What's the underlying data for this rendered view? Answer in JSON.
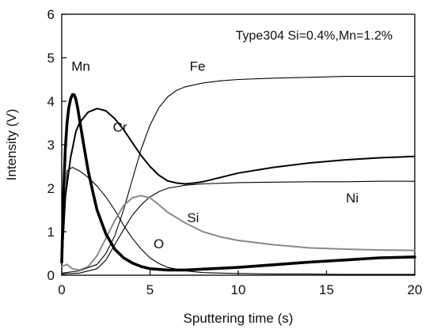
{
  "chart_data": {
    "type": "line",
    "title": "",
    "annotation": "Type304 Si=0.4%,Mn=1.2%",
    "xlabel": "Sputtering time (s)",
    "ylabel": "Intensity (V)",
    "xlim": [
      0,
      20
    ],
    "ylim": [
      0,
      6
    ],
    "xticks": [
      "0",
      "5",
      "10",
      "15",
      "20"
    ],
    "yticks": [
      "0",
      "1",
      "2",
      "3",
      "4",
      "5",
      "6"
    ],
    "grid": false,
    "series": [
      {
        "name": "Mn",
        "color": "#000000",
        "weight": "bold",
        "x": [
          0,
          0.1,
          0.2,
          0.3,
          0.4,
          0.5,
          0.6,
          0.7,
          0.8,
          0.9,
          1.0,
          1.2,
          1.5,
          1.8,
          2.0,
          2.5,
          3.0,
          3.5,
          4.0,
          4.5,
          5.0,
          6.0,
          7.0,
          8.0,
          10.0,
          12.0,
          14.0,
          16.0,
          18.0,
          20.0
        ],
        "y": [
          0.3,
          1.8,
          2.9,
          3.5,
          3.85,
          4.05,
          4.15,
          4.15,
          4.05,
          3.85,
          3.6,
          3.1,
          2.4,
          1.85,
          1.5,
          0.95,
          0.6,
          0.4,
          0.28,
          0.2,
          0.15,
          0.12,
          0.12,
          0.14,
          0.18,
          0.24,
          0.3,
          0.35,
          0.4,
          0.42
        ]
      },
      {
        "name": "Cr",
        "color": "#000000",
        "weight": "medium",
        "x": [
          0,
          0.2,
          0.5,
          0.8,
          1.0,
          1.5,
          2.0,
          2.5,
          3.0,
          3.5,
          4.0,
          4.5,
          5.0,
          5.5,
          6.0,
          6.5,
          7.0,
          7.5,
          8.0,
          9.0,
          10.0,
          12.0,
          14.0,
          16.0,
          18.0,
          20.0
        ],
        "y": [
          0.4,
          1.8,
          2.7,
          3.3,
          3.5,
          3.75,
          3.83,
          3.78,
          3.6,
          3.35,
          3.05,
          2.75,
          2.5,
          2.3,
          2.17,
          2.12,
          2.1,
          2.12,
          2.15,
          2.25,
          2.35,
          2.48,
          2.58,
          2.65,
          2.7,
          2.73
        ]
      },
      {
        "name": "Fe",
        "color": "#000000",
        "weight": "thin",
        "x": [
          0,
          1.0,
          2.0,
          2.5,
          3.0,
          3.5,
          4.0,
          4.5,
          5.0,
          5.5,
          6.0,
          6.5,
          7.0,
          8.0,
          9.0,
          10.0,
          12.0,
          14.0,
          16.0,
          18.0,
          20.0
        ],
        "y": [
          0.05,
          0.1,
          0.25,
          0.5,
          0.9,
          1.5,
          2.2,
          2.9,
          3.45,
          3.85,
          4.1,
          4.25,
          4.33,
          4.42,
          4.47,
          4.5,
          4.53,
          4.55,
          4.57,
          4.57,
          4.57
        ]
      },
      {
        "name": "Ni",
        "color": "#000000",
        "weight": "thin",
        "x": [
          0,
          1.0,
          2.0,
          2.5,
          3.0,
          3.5,
          4.0,
          4.5,
          5.0,
          5.5,
          6.0,
          7.0,
          8.0,
          10.0,
          12.0,
          14.0,
          16.0,
          18.0,
          20.0
        ],
        "y": [
          0.03,
          0.05,
          0.15,
          0.35,
          0.7,
          1.05,
          1.38,
          1.62,
          1.8,
          1.92,
          2.0,
          2.07,
          2.1,
          2.13,
          2.14,
          2.15,
          2.15,
          2.16,
          2.16
        ]
      },
      {
        "name": "Si",
        "color": "#8a8a8a",
        "weight": "medium",
        "x": [
          0,
          0.3,
          0.6,
          1.0,
          1.5,
          2.0,
          2.5,
          3.0,
          3.5,
          4.0,
          4.5,
          5.0,
          5.5,
          6.0,
          7.0,
          8.0,
          9.0,
          10.0,
          12.0,
          14.0,
          16.0,
          18.0,
          20.0
        ],
        "y": [
          0.2,
          0.25,
          0.15,
          0.12,
          0.2,
          0.45,
          0.85,
          1.25,
          1.6,
          1.78,
          1.83,
          1.78,
          1.62,
          1.45,
          1.2,
          1.0,
          0.88,
          0.8,
          0.7,
          0.63,
          0.6,
          0.58,
          0.57
        ]
      },
      {
        "name": "O",
        "color": "#000000",
        "weight": "thin",
        "x": [
          0,
          0.3,
          0.6,
          1.0,
          1.5,
          2.0,
          2.5,
          3.0,
          3.5,
          4.0,
          4.5,
          5.0,
          5.5,
          6.0,
          7.0,
          8.0,
          9.0,
          10.0,
          12.0,
          14.0,
          16.0,
          18.0,
          20.0
        ],
        "y": [
          0.1,
          2.4,
          2.48,
          2.4,
          2.25,
          2.05,
          1.8,
          1.5,
          1.15,
          0.85,
          0.6,
          0.4,
          0.27,
          0.18,
          0.1,
          0.06,
          0.05,
          0.04,
          0.03,
          0.03,
          0.02,
          0.02,
          0.02
        ]
      }
    ],
    "labels": [
      {
        "text": "Mn",
        "x": 0.55,
        "y": 4.7
      },
      {
        "text": "Cr",
        "x": 2.9,
        "y": 3.3
      },
      {
        "text": "Fe",
        "x": 7.25,
        "y": 4.7
      },
      {
        "text": "Ni",
        "x": 16.1,
        "y": 1.67
      },
      {
        "text": "Si",
        "x": 7.1,
        "y": 1.22
      },
      {
        "text": "O",
        "x": 5.2,
        "y": 0.62
      }
    ]
  }
}
